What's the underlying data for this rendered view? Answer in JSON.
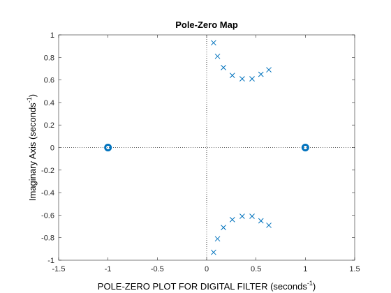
{
  "chart_data": {
    "type": "scatter",
    "title": "Pole-Zero Map",
    "xlabel_main": "POLE-ZERO PLOT FOR DIGITAL FILTER (seconds",
    "xlabel_sup": "-1",
    "xlabel_end": ")",
    "ylabel_main": "Imaginary Axis (seconds",
    "ylabel_sup": "-1",
    "ylabel_end": ")",
    "xlim": [
      -1.5,
      1.5
    ],
    "ylim": [
      -1,
      1
    ],
    "xticks": [
      -1.5,
      -1,
      -0.5,
      0,
      0.5,
      1,
      1.5
    ],
    "xtick_labels": [
      "-1.5",
      "-1",
      "-0.5",
      "0",
      "0.5",
      "1",
      "1.5"
    ],
    "yticks": [
      -1,
      -0.8,
      -0.6,
      -0.4,
      -0.2,
      0,
      0.2,
      0.4,
      0.6,
      0.8,
      1
    ],
    "ytick_labels": [
      "-1",
      "-0.8",
      "-0.6",
      "-0.4",
      "-0.2",
      "0",
      "0.2",
      "0.4",
      "0.6",
      "0.8",
      "1"
    ],
    "grid": false,
    "marker_color": "#0072bd",
    "reference_line_color": "#262626",
    "series": [
      {
        "marker": "x",
        "points": [
          {
            "x": 0.07,
            "y": 0.93
          },
          {
            "x": 0.11,
            "y": 0.81
          },
          {
            "x": 0.17,
            "y": 0.71
          },
          {
            "x": 0.26,
            "y": 0.64
          },
          {
            "x": 0.36,
            "y": 0.61
          },
          {
            "x": 0.46,
            "y": 0.61
          },
          {
            "x": 0.55,
            "y": 0.65
          },
          {
            "x": 0.63,
            "y": 0.69
          },
          {
            "x": 0.07,
            "y": -0.93
          },
          {
            "x": 0.11,
            "y": -0.81
          },
          {
            "x": 0.17,
            "y": -0.71
          },
          {
            "x": 0.26,
            "y": -0.64
          },
          {
            "x": 0.36,
            "y": -0.61
          },
          {
            "x": 0.46,
            "y": -0.61
          },
          {
            "x": 0.55,
            "y": -0.65
          },
          {
            "x": 0.63,
            "y": -0.69
          }
        ]
      },
      {
        "marker": "o",
        "points": [
          {
            "x": -1,
            "y": 0
          },
          {
            "x": 1,
            "y": 0
          }
        ]
      }
    ]
  }
}
